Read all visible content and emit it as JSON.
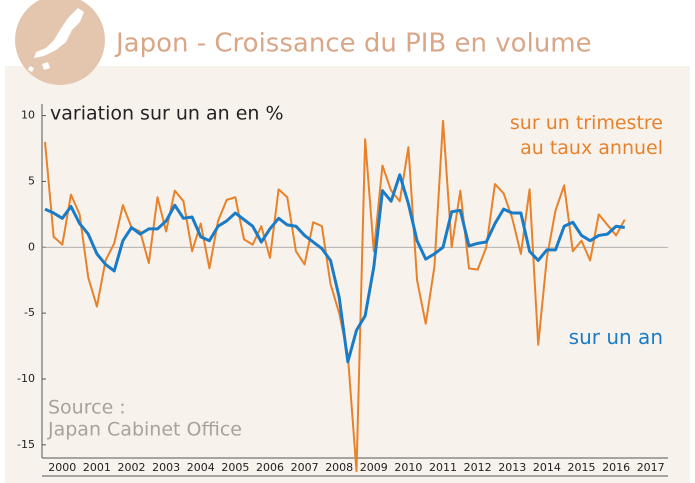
{
  "chart_data": {
    "type": "line",
    "title": "Japon - Croissance du PIB en volume",
    "y_label": "variation sur un an en %",
    "source": [
      "Source :",
      "Japan Cabinet Office"
    ],
    "x": [
      2000,
      2000.25,
      2000.5,
      2000.75,
      2001,
      2001.25,
      2001.5,
      2001.75,
      2002,
      2002.25,
      2002.5,
      2002.75,
      2003,
      2003.25,
      2003.5,
      2003.75,
      2004,
      2004.25,
      2004.5,
      2004.75,
      2005,
      2005.25,
      2005.5,
      2005.75,
      2006,
      2006.25,
      2006.5,
      2006.75,
      2007,
      2007.25,
      2007.5,
      2007.75,
      2008,
      2008.25,
      2008.5,
      2008.75,
      2009,
      2009.25,
      2009.5,
      2009.75,
      2010,
      2010.25,
      2010.5,
      2010.75,
      2011,
      2011.25,
      2011.5,
      2011.75,
      2012,
      2012.25,
      2012.5,
      2012.75,
      2013,
      2013.25,
      2013.5,
      2013.75,
      2014,
      2014.25,
      2014.5,
      2014.75,
      2015,
      2015.25,
      2015.5,
      2015.75,
      2016,
      2016.25,
      2016.5,
      2016.75
    ],
    "series": [
      {
        "name": "sur un trimestre au taux annuel",
        "color": "#e8822a",
        "values": [
          8,
          0.8,
          0.2,
          4.0,
          2.5,
          -2.3,
          -4.5,
          -1.0,
          0.3,
          3.2,
          1.5,
          1.2,
          -1.2,
          3.8,
          1.2,
          4.3,
          3.5,
          -0.3,
          1.8,
          -1.6,
          2.0,
          3.6,
          3.8,
          0.6,
          0.2,
          1.6,
          -0.8,
          4.4,
          3.8,
          -0.3,
          -1.3,
          1.9,
          1.6,
          -2.8,
          -5.0,
          -8.2,
          -17.0,
          8.2,
          -0.3,
          6.2,
          4.3,
          3.5,
          7.6,
          -2.5,
          -5.8,
          -1.5,
          9.6,
          0.0,
          4.3,
          -1.6,
          -1.7,
          0.0,
          4.8,
          4.1,
          2.2,
          -0.5,
          4.4,
          -7.4,
          -0.8,
          2.8,
          4.7,
          -0.3,
          0.5,
          -1.0,
          2.5,
          1.7,
          0.9,
          2.1
        ]
      },
      {
        "name": "sur un an",
        "color": "#1a7cc6",
        "values": [
          2.9,
          2.6,
          2.2,
          3.1,
          1.8,
          1.0,
          -0.5,
          -1.3,
          -1.8,
          0.5,
          1.5,
          1.0,
          1.4,
          1.4,
          2.0,
          3.2,
          2.2,
          2.3,
          0.8,
          0.5,
          1.6,
          2.0,
          2.6,
          2.1,
          1.6,
          0.4,
          1.4,
          2.2,
          1.7,
          1.6,
          0.9,
          0.4,
          -0.1,
          -1.0,
          -3.8,
          -8.7,
          -6.3,
          -5.2,
          -1.5,
          4.3,
          3.5,
          5.5,
          3.3,
          0.5,
          -0.9,
          -0.5,
          0.0,
          2.7,
          2.8,
          0.1,
          0.3,
          0.4,
          1.8,
          2.9,
          2.6,
          2.6,
          -0.3,
          -1.0,
          -0.2,
          -0.2,
          1.6,
          1.9,
          0.9,
          0.5,
          0.9,
          1.0,
          1.6,
          1.5
        ]
      }
    ],
    "xlim": [
      2000,
      2018
    ],
    "xticks": [
      {
        "value": 2000.5,
        "label": "2000"
      },
      {
        "value": 2001.5,
        "label": "2001"
      },
      {
        "value": 2002.5,
        "label": "2002"
      },
      {
        "value": 2003.5,
        "label": "2003"
      },
      {
        "value": 2004.5,
        "label": "2004"
      },
      {
        "value": 2005.5,
        "label": "2005"
      },
      {
        "value": 2006.5,
        "label": "2006"
      },
      {
        "value": 2007.5,
        "label": "2007"
      },
      {
        "value": 2008.5,
        "label": "2008"
      },
      {
        "value": 2009.5,
        "label": "2009"
      },
      {
        "value": 2010.5,
        "label": "2010"
      },
      {
        "value": 2011.5,
        "label": "2011"
      },
      {
        "value": 2012.5,
        "label": "2012"
      },
      {
        "value": 2013.5,
        "label": "2013"
      },
      {
        "value": 2014.5,
        "label": "2014"
      },
      {
        "value": 2015.5,
        "label": "2015"
      },
      {
        "value": 2016.5,
        "label": "2016"
      },
      {
        "value": 2017.5,
        "label": "2017"
      }
    ],
    "ylim": [
      -16,
      10.5
    ],
    "yticks": [
      -15,
      -10,
      -5,
      0,
      5,
      10
    ]
  }
}
